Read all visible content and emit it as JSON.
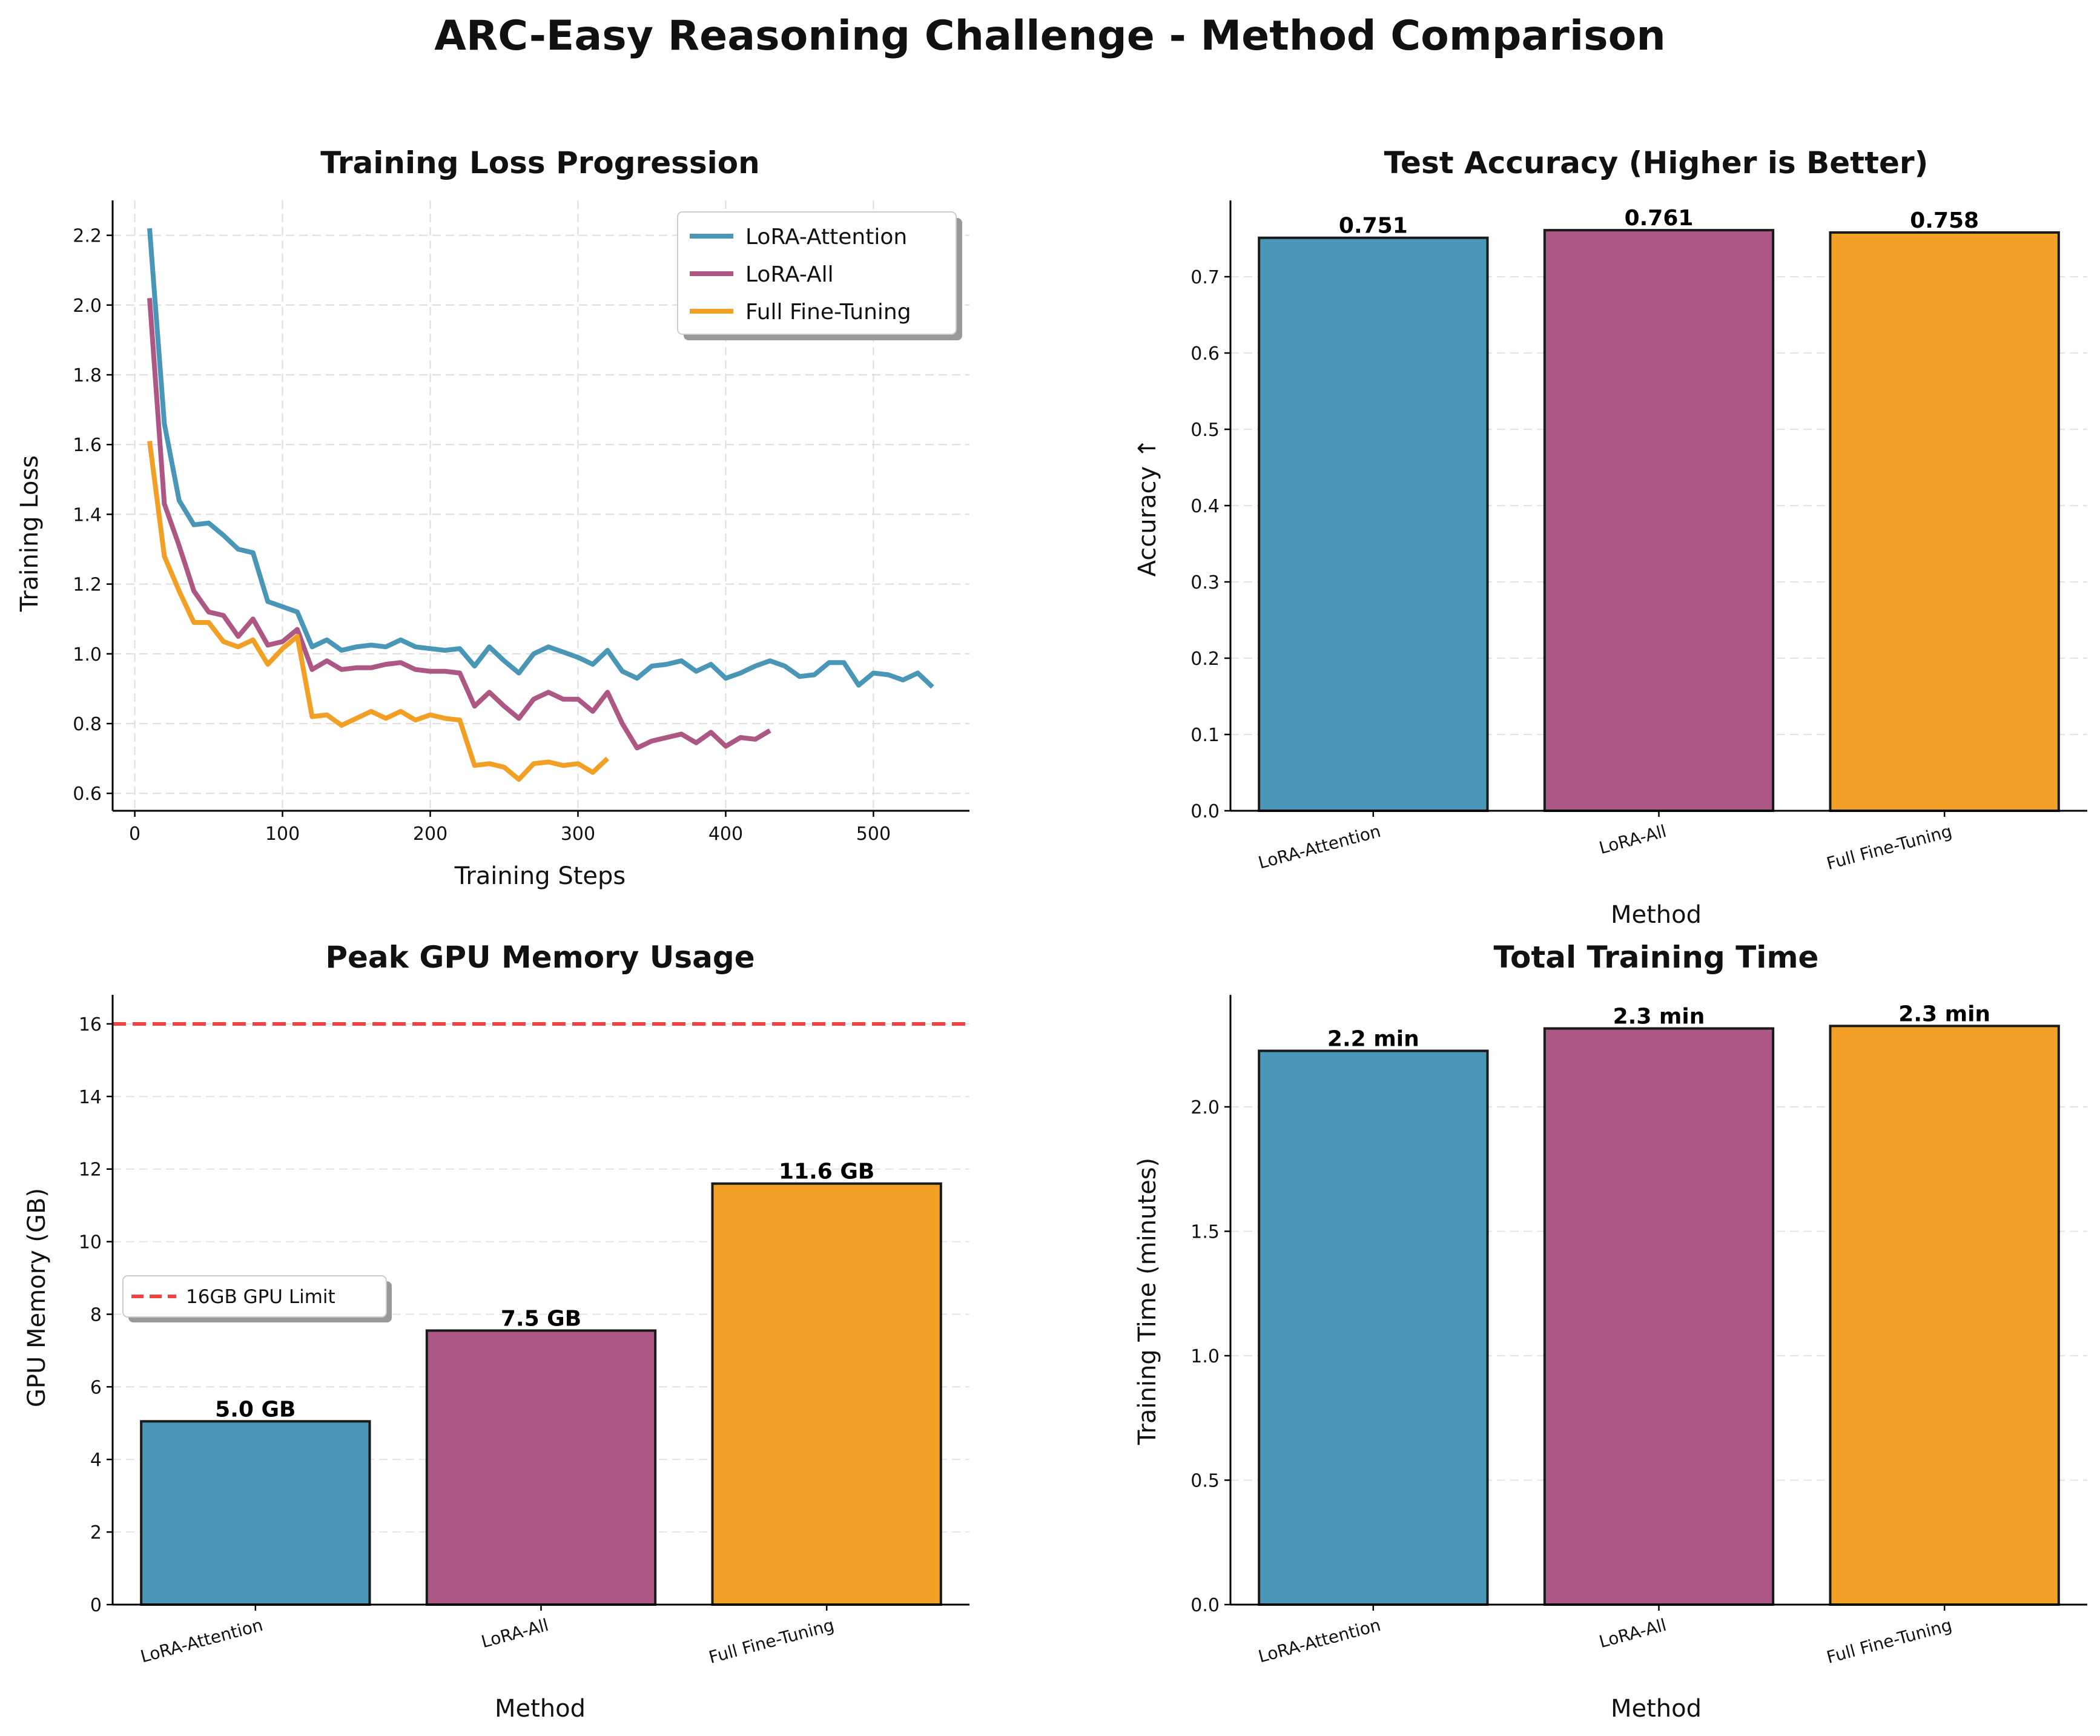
{
  "figure": {
    "title": "ARC-Easy Reasoning Challenge - Method Comparison"
  },
  "colors": {
    "LoRA-Attention": "#4a96b6",
    "LoRA-All": "#ad5784",
    "Full Fine-Tuning": "#f29f26",
    "limit": "#ee4444"
  },
  "chart_data": [
    {
      "id": "loss",
      "type": "line",
      "title": "Training Loss Progression",
      "xlabel": "Training Steps",
      "ylabel": "Training Loss",
      "xlim": [
        -15,
        565
      ],
      "ylim": [
        0.55,
        2.3
      ],
      "xticks": [
        0,
        100,
        200,
        300,
        400,
        500
      ],
      "yticks": [
        0.6,
        0.8,
        1.0,
        1.2,
        1.4,
        1.6,
        1.8,
        2.0,
        2.2
      ],
      "grid": true,
      "legend": "top-right",
      "series": [
        {
          "name": "LoRA-Attention",
          "x": [
            10,
            20,
            30,
            40,
            50,
            60,
            70,
            80,
            90,
            100,
            110,
            120,
            130,
            140,
            150,
            160,
            170,
            180,
            190,
            200,
            210,
            220,
            230,
            240,
            250,
            260,
            270,
            280,
            290,
            300,
            310,
            320,
            330,
            340,
            350,
            360,
            370,
            380,
            390,
            400,
            410,
            420,
            430,
            440,
            450,
            460,
            470,
            480,
            490,
            500,
            510,
            520,
            530,
            540
          ],
          "values": [
            2.22,
            1.66,
            1.44,
            1.37,
            1.375,
            1.34,
            1.3,
            1.29,
            1.15,
            1.135,
            1.12,
            1.02,
            1.04,
            1.01,
            1.02,
            1.025,
            1.02,
            1.04,
            1.02,
            1.015,
            1.01,
            1.015,
            0.965,
            1.02,
            0.98,
            0.945,
            1.0,
            1.02,
            1.005,
            0.99,
            0.97,
            1.01,
            0.95,
            0.93,
            0.965,
            0.97,
            0.98,
            0.95,
            0.97,
            0.93,
            0.945,
            0.965,
            0.98,
            0.965,
            0.935,
            0.94,
            0.975,
            0.975,
            0.91,
            0.945,
            0.94,
            0.925,
            0.945,
            0.905
          ]
        },
        {
          "name": "LoRA-All",
          "x": [
            10,
            20,
            30,
            40,
            50,
            60,
            70,
            80,
            90,
            100,
            110,
            120,
            130,
            140,
            150,
            160,
            170,
            180,
            190,
            200,
            210,
            220,
            230,
            240,
            250,
            260,
            270,
            280,
            290,
            300,
            310,
            320,
            330,
            340,
            350,
            360,
            370,
            380,
            390,
            400,
            410,
            420,
            430
          ],
          "values": [
            2.02,
            1.43,
            1.31,
            1.18,
            1.12,
            1.11,
            1.05,
            1.1,
            1.025,
            1.035,
            1.07,
            0.955,
            0.98,
            0.955,
            0.96,
            0.96,
            0.97,
            0.975,
            0.955,
            0.95,
            0.95,
            0.945,
            0.85,
            0.89,
            0.85,
            0.815,
            0.87,
            0.89,
            0.87,
            0.87,
            0.835,
            0.89,
            0.8,
            0.73,
            0.75,
            0.76,
            0.77,
            0.745,
            0.775,
            0.735,
            0.76,
            0.755,
            0.78
          ]
        },
        {
          "name": "Full Fine-Tuning",
          "x": [
            10,
            20,
            30,
            40,
            50,
            60,
            70,
            80,
            90,
            100,
            110,
            120,
            130,
            140,
            150,
            160,
            170,
            180,
            190,
            200,
            210,
            220,
            230,
            240,
            250,
            260,
            270,
            280,
            290,
            300,
            310,
            320
          ],
          "values": [
            1.61,
            1.28,
            1.18,
            1.09,
            1.09,
            1.035,
            1.02,
            1.04,
            0.97,
            1.015,
            1.05,
            0.82,
            0.825,
            0.795,
            0.815,
            0.835,
            0.815,
            0.835,
            0.81,
            0.825,
            0.815,
            0.81,
            0.68,
            0.685,
            0.675,
            0.64,
            0.685,
            0.69,
            0.68,
            0.685,
            0.66,
            0.7
          ]
        }
      ]
    },
    {
      "id": "accuracy",
      "type": "bar",
      "title": "Test Accuracy (Higher is Better)",
      "xlabel": "Method",
      "ylabel": "Accuracy ↑",
      "categories": [
        "LoRA-Attention",
        "LoRA-All",
        "Full Fine-Tuning"
      ],
      "values": [
        0.751,
        0.761,
        0.758
      ],
      "labels": [
        "0.751",
        "0.761",
        "0.758"
      ],
      "ylim": [
        0,
        0.8
      ],
      "yticks": [
        0.0,
        0.1,
        0.2,
        0.3,
        0.4,
        0.5,
        0.6,
        0.7
      ],
      "tick_decimals": 1,
      "grid": true
    },
    {
      "id": "memory",
      "type": "bar",
      "title": "Peak GPU Memory Usage",
      "xlabel": "Method",
      "ylabel": "GPU Memory (GB)",
      "categories": [
        "LoRA-Attention",
        "LoRA-All",
        "Full Fine-Tuning"
      ],
      "values": [
        5.05,
        7.55,
        11.6
      ],
      "labels": [
        "5.0 GB",
        "7.5 GB",
        "11.6 GB"
      ],
      "ylim": [
        0,
        16.8
      ],
      "yticks": [
        0,
        2,
        4,
        6,
        8,
        10,
        12,
        14,
        16
      ],
      "tick_decimals": 0,
      "grid": true,
      "reference_line": {
        "y": 16,
        "label": "16GB GPU Limit"
      },
      "legend": "center-left"
    },
    {
      "id": "time",
      "type": "bar",
      "title": "Total Training Time",
      "xlabel": "Method",
      "ylabel": "Training Time (minutes)",
      "categories": [
        "LoRA-Attention",
        "LoRA-All",
        "Full Fine-Tuning"
      ],
      "values": [
        2.225,
        2.315,
        2.325
      ],
      "labels": [
        "2.2 min",
        "2.3 min",
        "2.3 min"
      ],
      "ylim": [
        0,
        2.45
      ],
      "yticks": [
        0.0,
        0.5,
        1.0,
        1.5,
        2.0
      ],
      "tick_decimals": 1,
      "grid": true
    }
  ]
}
